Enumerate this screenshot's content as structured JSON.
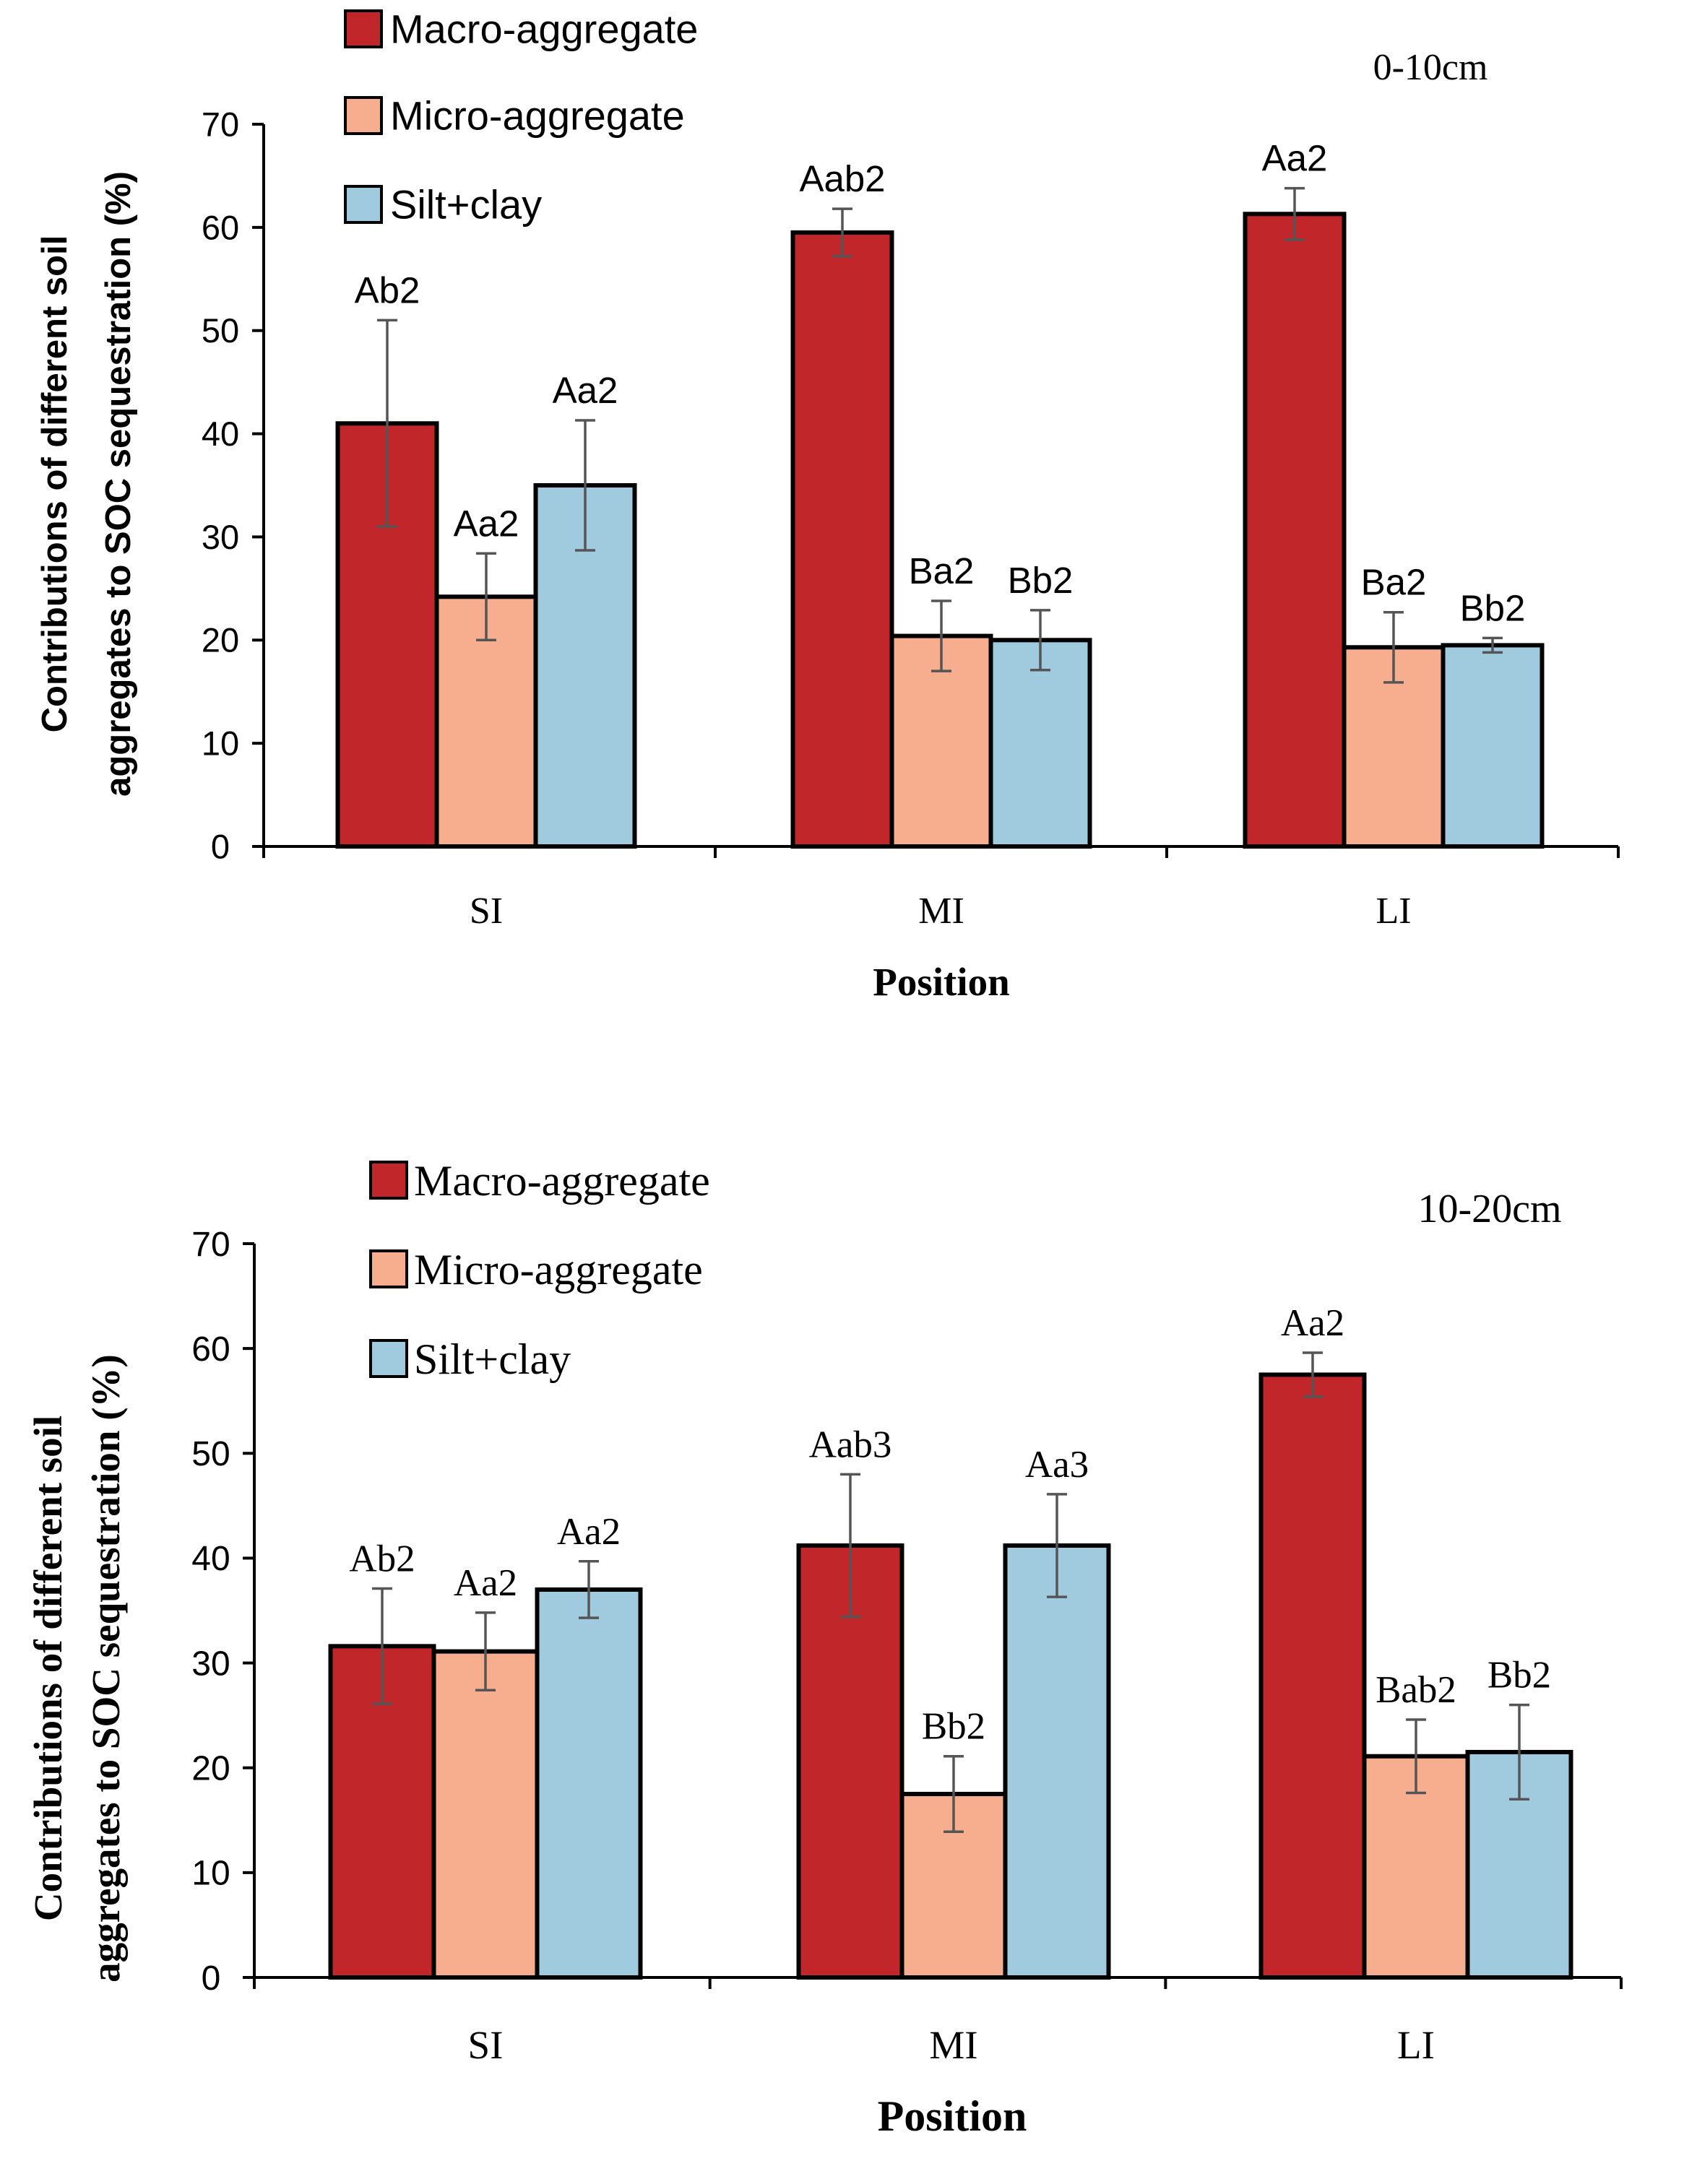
{
  "chart_data": [
    {
      "type": "bar",
      "categories": [
        "SI",
        "MI",
        "LI"
      ],
      "series": [
        {
          "name": "Macro-aggregate",
          "color": "#C0262A",
          "values": [
            41.0,
            59.5,
            61.3
          ],
          "errors": [
            10.0,
            2.3,
            2.5
          ],
          "labels": [
            "Ab2",
            "Aab2",
            "Aa2"
          ]
        },
        {
          "name": "Micro-aggregate",
          "color": "#F7AE8F",
          "values": [
            24.2,
            20.4,
            19.3
          ],
          "errors": [
            4.2,
            3.4,
            3.4
          ],
          "labels": [
            "Aa2",
            "Ba2",
            "Ba2"
          ]
        },
        {
          "name": "Silt+clay",
          "color": "#A0CBDF",
          "values": [
            35.0,
            20.0,
            19.5
          ],
          "errors": [
            6.3,
            2.9,
            0.7
          ],
          "labels": [
            "Aa2",
            "Bb2",
            "Bb2"
          ]
        }
      ],
      "annotation": "0-10cm",
      "xlabel": "Position",
      "ylabel_lines": [
        "Contributions of different soil",
        "aggregates to SOC sequestration (%)"
      ],
      "ylim": [
        0,
        70
      ],
      "yticks": [
        "0",
        "10",
        "20",
        "30",
        "40",
        "50",
        "60",
        "70"
      ],
      "legend_position": "top-left",
      "grid": false
    },
    {
      "type": "bar",
      "categories": [
        "SI",
        "MI",
        "LI"
      ],
      "series": [
        {
          "name": "Macro-aggregate",
          "color": "#C0262A",
          "values": [
            31.6,
            41.2,
            57.5
          ],
          "errors": [
            5.5,
            6.8,
            2.1
          ],
          "labels": [
            "Ab2",
            "Aab3",
            "Aa2"
          ]
        },
        {
          "name": "Micro-aggregate",
          "color": "#F7AE8F",
          "values": [
            31.1,
            17.5,
            21.1
          ],
          "errors": [
            3.7,
            3.6,
            3.5
          ],
          "labels": [
            "Aa2",
            "Bb2",
            "Bab2"
          ]
        },
        {
          "name": "Silt+clay",
          "color": "#A0CBDF",
          "values": [
            37.0,
            41.2,
            21.5
          ],
          "errors": [
            2.7,
            4.9,
            4.5
          ],
          "labels": [
            "Aa2",
            "Aa3",
            "Bb2"
          ]
        }
      ],
      "annotation": "10-20cm",
      "xlabel": "Position",
      "ylabel_lines": [
        "Contributions  of different  soil",
        "aggregates to SOC sequestration (%)"
      ],
      "ylim": [
        0,
        70
      ],
      "yticks": [
        "0",
        "10",
        "20",
        "30",
        "40",
        "50",
        "60",
        "70"
      ],
      "legend_position": "top-left",
      "grid": false
    }
  ]
}
